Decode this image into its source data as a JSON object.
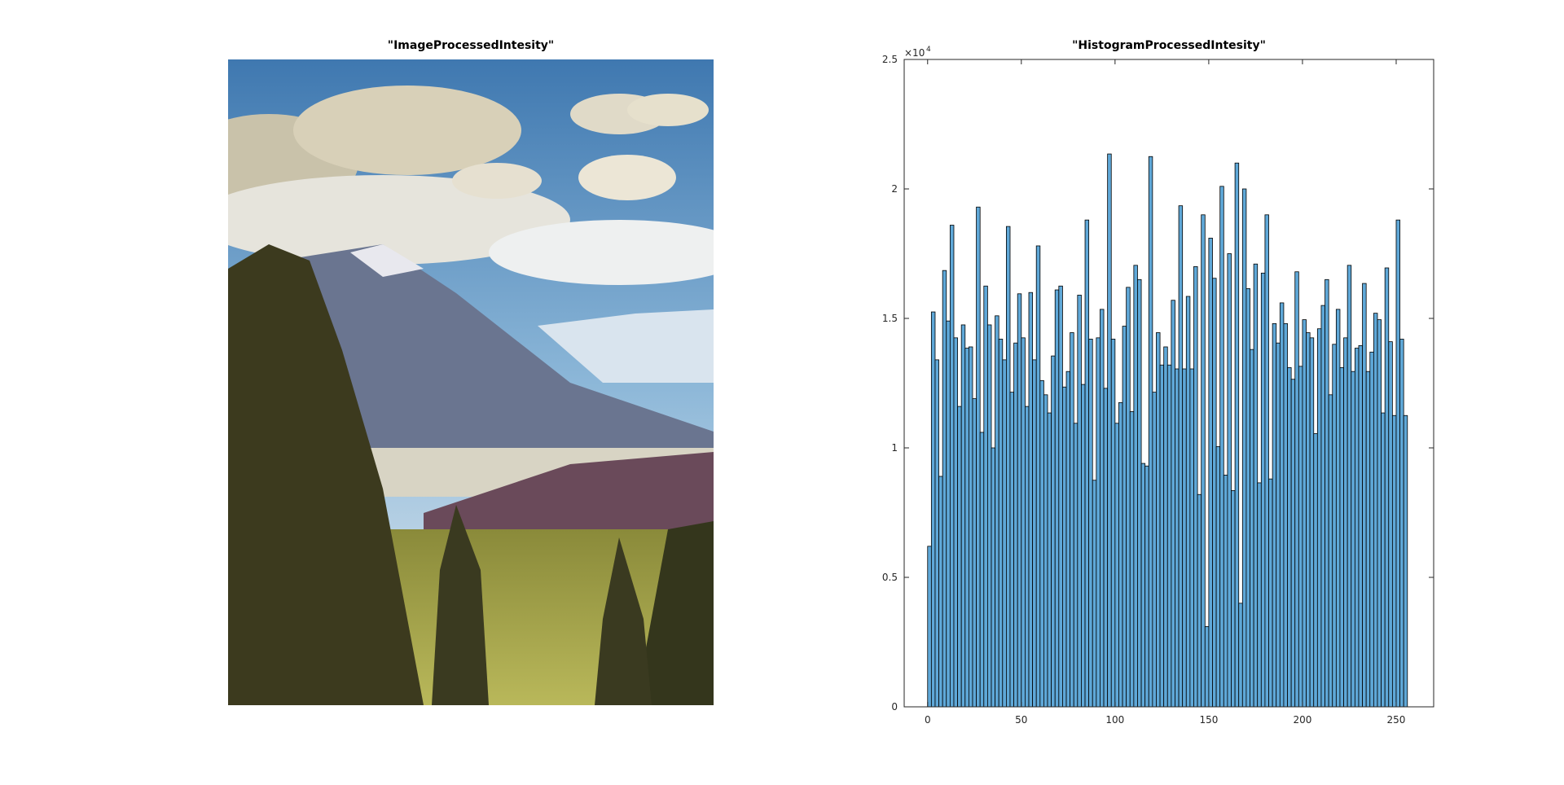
{
  "chart_data": [
    {
      "type": "image",
      "title": "\"ImageProcessedIntesity\""
    },
    {
      "type": "histogram",
      "title": "\"HistogramProcessedIntesity\"",
      "color": "#5fa8d8",
      "bins": [
        0,
        2,
        4,
        6,
        8,
        10,
        12,
        14,
        16,
        18,
        20,
        22,
        24,
        26,
        28,
        30,
        32,
        34,
        36,
        38,
        40,
        42,
        44,
        46,
        48,
        50,
        52,
        54,
        56,
        58,
        60,
        62,
        64,
        66,
        68,
        70,
        72,
        74,
        76,
        78,
        80,
        82,
        84,
        86,
        88,
        90,
        92,
        94,
        96,
        98,
        100,
        102,
        104,
        106,
        108,
        110,
        112,
        114,
        116,
        118,
        120,
        122,
        124,
        126,
        128,
        130,
        132,
        134,
        136,
        138,
        140,
        142,
        144,
        146,
        148,
        150,
        152,
        154,
        156,
        158,
        160,
        162,
        164,
        166,
        168,
        170,
        172,
        174,
        176,
        178,
        180,
        182,
        184,
        186,
        188,
        190,
        192,
        194,
        196,
        198,
        200,
        202,
        204,
        206,
        208,
        210,
        212,
        214,
        216,
        218,
        220,
        222,
        224,
        226,
        228,
        230,
        232,
        234,
        236,
        238,
        240,
        242,
        244,
        246,
        248,
        250,
        252,
        254,
        256
      ],
      "values": [
        6200,
        15250,
        13400,
        8900,
        16850,
        14900,
        18600,
        14250,
        11600,
        14750,
        13850,
        13900,
        11900,
        19300,
        10600,
        16250,
        14750,
        10000,
        15100,
        14200,
        13400,
        18550,
        12150,
        14050,
        15950,
        14250,
        11600,
        16000,
        13400,
        17800,
        12600,
        12050,
        11350,
        13550,
        16100,
        16250,
        12350,
        12950,
        14450,
        10950,
        15900,
        12450,
        18800,
        14200,
        8750,
        14250,
        15350,
        12300,
        21350,
        14200,
        10950,
        11750,
        14700,
        16200,
        11400,
        17050,
        16500,
        9400,
        9300,
        21250,
        12150,
        14450,
        13200,
        13900,
        13200,
        15700,
        13050,
        19350,
        13050,
        15850,
        13050,
        17000,
        8200,
        19000,
        3100,
        18100,
        16550,
        10050,
        20100,
        8950,
        17500,
        8350,
        21000,
        4000,
        20000,
        16150,
        13800,
        17100,
        8650,
        16750,
        19000,
        8800,
        14800,
        14050,
        15600,
        14800,
        13100,
        12650,
        16800,
        13150,
        14950,
        14450,
        14250,
        10550,
        14600,
        15500,
        16500,
        12050,
        14000,
        15350,
        13100,
        14250,
        17050,
        12950,
        13850,
        13950,
        16350,
        12950,
        13700,
        15200,
        14950,
        11350,
        16950,
        14100,
        11250,
        18800,
        14200,
        11250
      ],
      "xlim": [
        -12.5,
        270
      ],
      "xticks": [
        0,
        50,
        100,
        150,
        200,
        250
      ],
      "ylim": [
        0,
        25000
      ],
      "yticks": [
        0,
        {
          "value": 5000,
          "label": "0.5"
        },
        {
          "value": 10000,
          "label": "1"
        },
        {
          "value": 15000,
          "label": "1.5"
        },
        {
          "value": 20000,
          "label": "2"
        },
        {
          "value": 25000,
          "label": "2.5"
        }
      ],
      "y_multiplier": {
        "base": "×10",
        "exponent": "4"
      }
    }
  ]
}
